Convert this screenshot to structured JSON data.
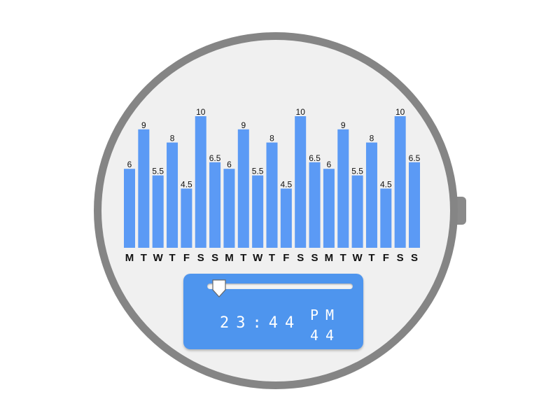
{
  "chart_data": {
    "type": "bar",
    "categories": [
      "M",
      "T",
      "W",
      "T",
      "F",
      "S",
      "S",
      "M",
      "T",
      "W",
      "T",
      "F",
      "S",
      "S",
      "M",
      "T",
      "W",
      "T",
      "F",
      "S",
      "S"
    ],
    "values": [
      6,
      9,
      5.5,
      8,
      4.5,
      10,
      6.5,
      6,
      9,
      5.5,
      8,
      4.5,
      10,
      6.5,
      6,
      9,
      5.5,
      8,
      4.5,
      10,
      6.5
    ],
    "value_labels": [
      "6",
      "9",
      "5.5",
      "8",
      "4.5",
      "10",
      "6.5",
      "6",
      "9",
      "5.5",
      "8",
      "4.5",
      "10",
      "6.5",
      "6",
      "9",
      "5.5",
      "8",
      "4.5",
      "10",
      "6.5"
    ],
    "ylim": [
      0,
      10
    ],
    "grid": false,
    "bar_color": "#5b9af5"
  },
  "time_panel": {
    "time": "23:44",
    "period": "PM",
    "seconds": "44",
    "slider_value_fraction": 0.07,
    "panel_color": "#4e95ee"
  },
  "watch": {
    "case_color": "#858585",
    "face_color": "#f0f0f0"
  }
}
